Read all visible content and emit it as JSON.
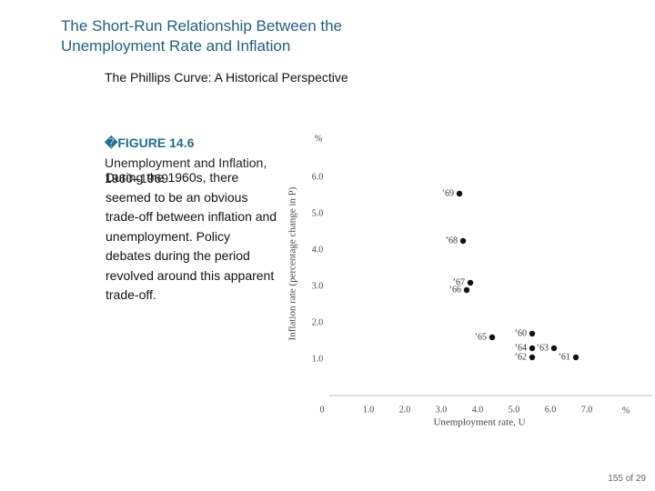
{
  "slide": {
    "title": "The Short-Run Relationship Between the Unemployment Rate and Inflation",
    "subtitle": "The Phillips Curve: A Historical Perspective",
    "figure_label": "�FIGURE 14.6",
    "figure_caption": "Unemployment and Inflation, 1960–1969",
    "body": "During the 1960s, there seemed to be an obvious trade-off between inflation and unemployment. Policy debates during the period revolved around this apparent trade-off.",
    "page": "155 of 29"
  },
  "chart_data": {
    "type": "scatter",
    "x_label": "Unemployment rate, U",
    "y_label": "Inflation rate (percentage change in P)",
    "x_unit": "%",
    "y_unit": "%",
    "labels": [
      "’60",
      "’61",
      "’62",
      "’63",
      "’64",
      "’65",
      "’66",
      "’67",
      "’68",
      "’69"
    ],
    "x": [
      5.5,
      6.7,
      5.5,
      6.1,
      5.5,
      4.4,
      3.7,
      3.8,
      3.6,
      3.5
    ],
    "values": [
      1.7,
      1.05,
      1.05,
      1.3,
      1.3,
      1.6,
      2.9,
      3.1,
      4.25,
      5.55
    ],
    "color": "#111111",
    "xlim": [
      0,
      8.8
    ],
    "ylim": [
      0,
      6.5
    ],
    "xticks": [
      0,
      {
        "value": 1,
        "label": "1.0"
      },
      {
        "value": 2,
        "label": "2.0"
      },
      {
        "value": 3,
        "label": "3.0"
      },
      {
        "value": 4,
        "label": "4.0"
      },
      {
        "value": 5,
        "label": "5.0"
      },
      {
        "value": 6,
        "label": "6.0"
      },
      {
        "value": 7,
        "label": "7.0"
      }
    ],
    "yticks": [
      {
        "value": 1,
        "label": "1.0"
      },
      {
        "value": 2,
        "label": "2.0"
      },
      {
        "value": 3,
        "label": "3.0"
      },
      {
        "value": 4,
        "label": "4.0"
      },
      {
        "value": 5,
        "label": "5.0"
      },
      {
        "value": 6,
        "label": "6.0"
      }
    ]
  }
}
